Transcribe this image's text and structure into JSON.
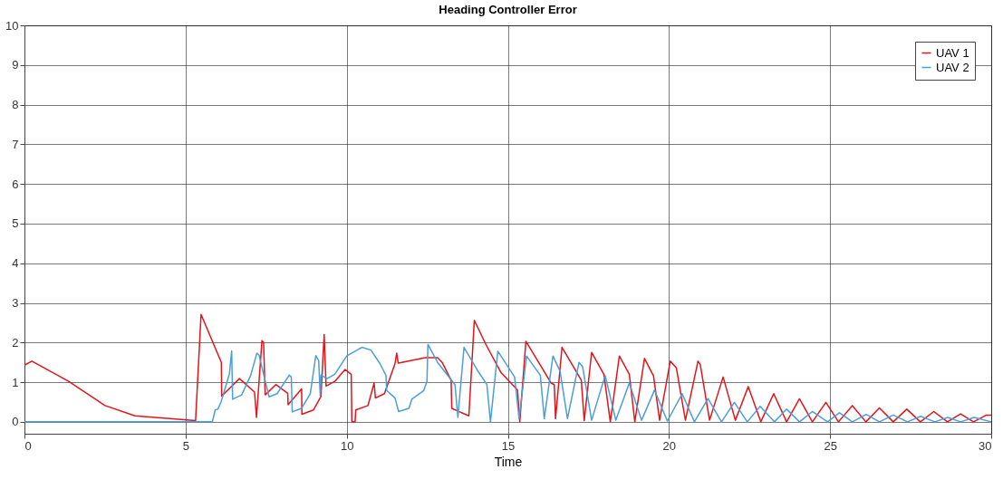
{
  "chart_data": {
    "type": "line",
    "title": "Heading Controller Error",
    "xlabel": "Time",
    "xlim": [
      0,
      30
    ],
    "ylim": [
      -0.3,
      10
    ],
    "xticks": [
      0,
      5,
      10,
      15,
      20,
      25,
      30
    ],
    "yticks": [
      0,
      1,
      2,
      3,
      4,
      5,
      6,
      7,
      8,
      9,
      10
    ],
    "grid": true,
    "legend": "top right",
    "marker": "none",
    "line_style": "solid",
    "series": [
      {
        "name": "UAV 1",
        "color": "#e3141c",
        "x": [
          0,
          0.23,
          1.37,
          2.5,
          3.43,
          5.31,
          5.48,
          6.11,
          6.12,
          6.67,
          7.14,
          7.2,
          7.37,
          7.42,
          7.47,
          7.8,
          8.17,
          8.18,
          8.6,
          8.61,
          8.97,
          9.2,
          9.3,
          9.36,
          9.63,
          9.95,
          10.14,
          10.16,
          10.26,
          10.28,
          10.66,
          10.85,
          10.89,
          11.17,
          11.5,
          11.55,
          11.6,
          12.44,
          12.82,
          12.96,
          13.24,
          13.26,
          13.79,
          13.96,
          14.32,
          14.79,
          15.3,
          15.37,
          15.56,
          16.34,
          16.44,
          16.48,
          16.68,
          17.28,
          17.37,
          17.6,
          17.98,
          18.18,
          18.46,
          18.77,
          18.94,
          19.24,
          19.52,
          19.71,
          20.04,
          20.23,
          20.51,
          20.9,
          20.97,
          21.26,
          21.68,
          22.06,
          22.46,
          22.85,
          23.25,
          23.65,
          24.05,
          24.45,
          24.87,
          25.26,
          25.69,
          26.11,
          26.53,
          26.96,
          27.38,
          27.8,
          28.22,
          28.64,
          29.05,
          29.45,
          29.85,
          30
        ],
        "values": [
          1.43,
          1.53,
          1.02,
          0.41,
          0.15,
          0.03,
          2.71,
          1.5,
          0.65,
          1.09,
          0.75,
          0.11,
          2.05,
          2.0,
          0.68,
          0.94,
          0.72,
          0.43,
          0.83,
          0.19,
          0.3,
          0.64,
          2.2,
          0.9,
          1.02,
          1.32,
          1.2,
          0,
          0,
          0.3,
          0.41,
          0.98,
          0.6,
          0.71,
          1.47,
          1.73,
          1.48,
          1.62,
          1.62,
          1.5,
          1.05,
          0.34,
          0.15,
          2.56,
          1.95,
          1.24,
          0.8,
          0,
          2.03,
          0.98,
          0.94,
          0.08,
          1.88,
          1.05,
          0.03,
          1.75,
          1.2,
          0,
          1.66,
          1.2,
          0,
          1.6,
          1.16,
          0.04,
          1.53,
          1.36,
          0.04,
          1.53,
          1.45,
          0.04,
          1.13,
          0.04,
          0.89,
          0,
          0.71,
          0,
          0.58,
          0,
          0.49,
          0,
          0.41,
          0,
          0.35,
          0,
          0.32,
          0,
          0.26,
          0,
          0.2,
          0,
          0.17,
          0.17
        ]
      },
      {
        "name": "UAV 2",
        "color": "#4a9fd8",
        "x": [
          0,
          5.83,
          5.92,
          6.0,
          6.1,
          6.36,
          6.43,
          6.46,
          6.74,
          7.02,
          7.21,
          7.28,
          7.59,
          7.84,
          8.22,
          8.28,
          8.31,
          8.6,
          8.87,
          9.04,
          9.13,
          9.18,
          9.2,
          9.39,
          9.63,
          10,
          10.47,
          10.75,
          11.03,
          11.22,
          11.24,
          11.5,
          11.61,
          11.93,
          12.02,
          12.39,
          12.49,
          12.52,
          12.82,
          13.28,
          13.36,
          13.45,
          13.64,
          14.08,
          14.35,
          14.46,
          14.69,
          15.21,
          15.35,
          15.58,
          16.01,
          16.13,
          16.4,
          16.62,
          16.85,
          17.21,
          17.32,
          17.6,
          18.02,
          18.35,
          18.77,
          19.15,
          19.55,
          19.95,
          20.41,
          20.79,
          21.21,
          21.63,
          22.03,
          22.43,
          22.83,
          23.27,
          23.65,
          24.05,
          24.45,
          24.92,
          25.29,
          25.69,
          26.12,
          26.53,
          26.96,
          27.4,
          27.81,
          28.25,
          28.65,
          29.05,
          29.47,
          30
        ],
        "values": [
          0,
          0,
          0.3,
          0.32,
          0.5,
          1.21,
          1.79,
          0.57,
          0.68,
          1.17,
          1.73,
          1.68,
          0.63,
          0.71,
          1.18,
          1.13,
          0.25,
          0.34,
          0.71,
          1.67,
          1.54,
          0.64,
          1.18,
          1.09,
          1.2,
          1.66,
          1.88,
          1.81,
          1.47,
          1.17,
          0.79,
          0.6,
          0.26,
          0.34,
          0.57,
          0.79,
          1.02,
          1.95,
          1.5,
          1.02,
          0.94,
          0.11,
          1.88,
          1.27,
          0.94,
          0,
          1.78,
          1.13,
          0.08,
          1.66,
          1.17,
          0.08,
          1.66,
          1.28,
          0.08,
          1.5,
          1.39,
          0.04,
          1.17,
          0.04,
          0.98,
          0.04,
          0.8,
          0.02,
          0.71,
          0,
          0.59,
          0,
          0.49,
          0,
          0.39,
          0,
          0.32,
          0,
          0.26,
          0,
          0.23,
          0,
          0.19,
          0,
          0.17,
          0,
          0.14,
          0,
          0.11,
          0,
          0.11,
          0
        ]
      }
    ]
  }
}
